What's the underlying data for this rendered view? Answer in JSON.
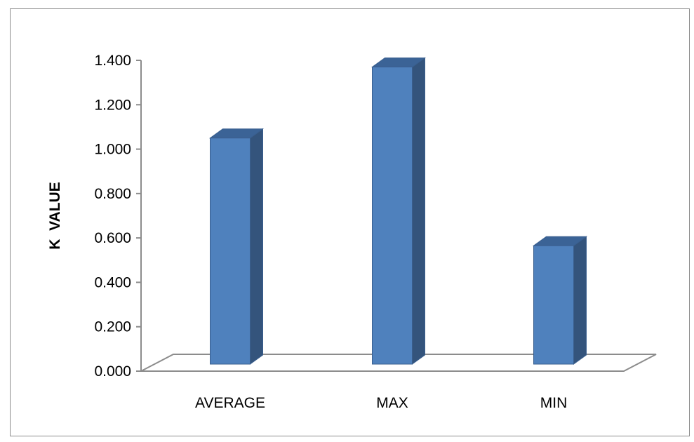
{
  "chart_data": {
    "type": "bar",
    "style": "3d-column",
    "title": "",
    "xlabel": "",
    "ylabel": "K  VALUE",
    "categories": [
      "AVERAGE",
      "MAX",
      "MIN"
    ],
    "values": [
      1.05,
      1.37,
      0.565
    ],
    "ylim": [
      0,
      1.4
    ],
    "y_ticks": [
      "0.000",
      "0.200",
      "0.400",
      "0.600",
      "0.800",
      "1.000",
      "1.200",
      "1.400"
    ],
    "grid": false,
    "legend": "none",
    "colors": {
      "bar_front": "#4f81bd",
      "bar_side": "#34547c",
      "bar_top": "#3b6396",
      "bar_edge": "#3a5f8f",
      "floor_line": "#8c8c8c",
      "axis_line": "#8c8c8c",
      "frame": "#8c8c8c"
    }
  }
}
